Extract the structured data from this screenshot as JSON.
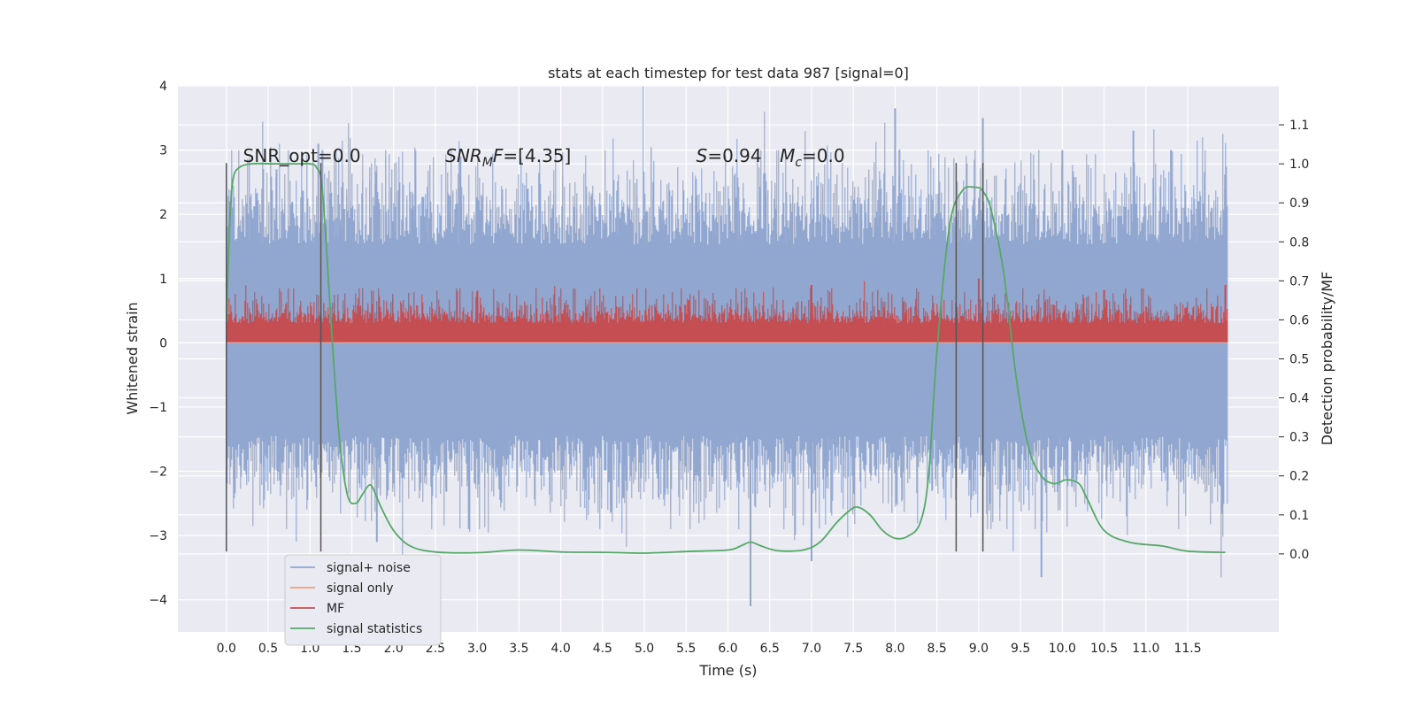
{
  "chart_data": {
    "type": "line",
    "title": "stats at each timestep for test data 987 [signal=0]",
    "xlabel": "Time (s)",
    "ylabel": "Whitened strain",
    "y2label": "Detection probability/MF",
    "xlim": [
      -0.58,
      12.59
    ],
    "ylim": [
      -4.5,
      4.0
    ],
    "y2lim": [
      -0.2,
      1.2
    ],
    "xticks": [
      0.0,
      0.5,
      1.0,
      1.5,
      2.0,
      2.5,
      3.0,
      3.5,
      4.0,
      4.5,
      5.0,
      5.5,
      6.0,
      6.5,
      7.0,
      7.5,
      8.0,
      8.5,
      9.0,
      9.5,
      10.0,
      10.5,
      11.0,
      11.5
    ],
    "xtick_labels": [
      "0.0",
      "0.5",
      "1.0",
      "1.5",
      "2.0",
      "2.5",
      "3.0",
      "3.5",
      "4.0",
      "4.5",
      "5.0",
      "5.5",
      "6.0",
      "6.5",
      "7.0",
      "7.5",
      "8.0",
      "8.5",
      "9.0",
      "9.5",
      "10.0",
      "10.5",
      "11.0",
      "11.5"
    ],
    "yticks": [
      -4,
      -3,
      -2,
      -1,
      0,
      1,
      2,
      3,
      4
    ],
    "ytick_labels": [
      "−4",
      "−3",
      "−2",
      "−1",
      "0",
      "1",
      "2",
      "3",
      "4"
    ],
    "y2ticks": [
      0.0,
      0.1,
      0.2,
      0.3,
      0.4,
      0.5,
      0.6,
      0.7,
      0.8,
      0.9,
      1.0,
      1.1
    ],
    "y2tick_labels": [
      "0.0",
      "0.1",
      "0.2",
      "0.3",
      "0.4",
      "0.5",
      "0.6",
      "0.7",
      "0.8",
      "0.9",
      "1.0",
      "1.1"
    ],
    "grid": true,
    "legend_placement": "lower-left",
    "annotations": [
      {
        "text": "SNR_opt=0.0",
        "x": 0.2,
        "y": 2.9
      },
      {
        "text": "SNR",
        "sub": "M",
        "rest": "F=[4.35]",
        "x": 2.62,
        "y": 2.9,
        "italic": true
      },
      {
        "text": "S=0.94",
        "x": 5.62,
        "y": 2.9
      },
      {
        "text": "M",
        "sub": "c",
        "rest": "=0.0",
        "x": 6.62,
        "y": 2.9
      }
    ],
    "vertical_markers": [
      0.0,
      1.13,
      8.73,
      9.05
    ],
    "vertical_marker_range": [
      -3.25,
      2.8
    ],
    "series": [
      {
        "name": "signal+ noise",
        "color": "#92a7cf",
        "kind": "noise-band",
        "x_range": [
          0.0,
          11.98
        ],
        "typical_envelope": [
          -1.7,
          1.8
        ],
        "peaks": [
          {
            "x": 0.6,
            "y": 2.7
          },
          {
            "x": 1.1,
            "y": 3.1
          },
          {
            "x": 2.8,
            "y": 2.9
          },
          {
            "x": 8.0,
            "y": 3.65
          },
          {
            "x": 9.05,
            "y": 3.5
          },
          {
            "x": 10.0,
            "y": 3.0
          },
          {
            "x": 10.85,
            "y": 3.3
          },
          {
            "x": 11.3,
            "y": 3.0
          },
          {
            "x": 2.9,
            "y": -2.9
          },
          {
            "x": 6.27,
            "y": -4.1
          },
          {
            "x": 7.0,
            "y": -3.4
          },
          {
            "x": 9.75,
            "y": -3.65
          },
          {
            "x": 1.8,
            "y": -3.1
          }
        ]
      },
      {
        "name": "signal only",
        "color": "#e8a185",
        "kind": "line",
        "x": [
          0.0,
          11.98
        ],
        "y": [
          0.0,
          0.0
        ]
      },
      {
        "name": "MF",
        "color": "#c44e52",
        "kind": "noise-band",
        "x_range": [
          0.0,
          11.98
        ],
        "typical_envelope": [
          0.0,
          0.55
        ],
        "peaks": [
          {
            "x": 3.0,
            "y": 0.8
          },
          {
            "x": 7.0,
            "y": 0.9
          },
          {
            "x": 9.0,
            "y": 1.0
          },
          {
            "x": 10.5,
            "y": 0.82
          },
          {
            "x": 11.95,
            "y": 0.9
          }
        ]
      },
      {
        "name": "signal statistics",
        "color": "#55a868",
        "kind": "line",
        "axis": "right",
        "x": [
          0.0,
          0.04,
          0.08,
          0.15,
          0.3,
          0.6,
          0.9,
          1.0,
          1.08,
          1.15,
          1.25,
          1.35,
          1.45,
          1.55,
          1.62,
          1.7,
          1.75,
          1.85,
          2.0,
          2.2,
          2.5,
          3.0,
          3.5,
          4.0,
          4.5,
          5.0,
          5.5,
          6.0,
          6.15,
          6.27,
          6.4,
          6.6,
          6.9,
          7.1,
          7.3,
          7.45,
          7.55,
          7.7,
          7.85,
          8.0,
          8.15,
          8.3,
          8.4,
          8.5,
          8.65,
          8.8,
          8.95,
          9.05,
          9.15,
          9.3,
          9.45,
          9.6,
          9.75,
          9.9,
          10.05,
          10.2,
          10.3,
          10.5,
          10.8,
          11.2,
          11.5,
          11.95
        ],
        "y": [
          0.59,
          0.85,
          0.96,
          0.99,
          1.0,
          1.0,
          1.0,
          1.0,
          0.99,
          0.93,
          0.6,
          0.3,
          0.15,
          0.13,
          0.15,
          0.175,
          0.17,
          0.12,
          0.06,
          0.02,
          0.005,
          0.003,
          0.01,
          0.005,
          0.004,
          0.002,
          0.006,
          0.01,
          0.02,
          0.03,
          0.02,
          0.008,
          0.01,
          0.03,
          0.08,
          0.11,
          0.12,
          0.1,
          0.06,
          0.04,
          0.045,
          0.08,
          0.2,
          0.52,
          0.84,
          0.93,
          0.94,
          0.93,
          0.88,
          0.72,
          0.45,
          0.27,
          0.2,
          0.18,
          0.19,
          0.18,
          0.14,
          0.06,
          0.03,
          0.02,
          0.007,
          0.004
        ]
      }
    ]
  }
}
